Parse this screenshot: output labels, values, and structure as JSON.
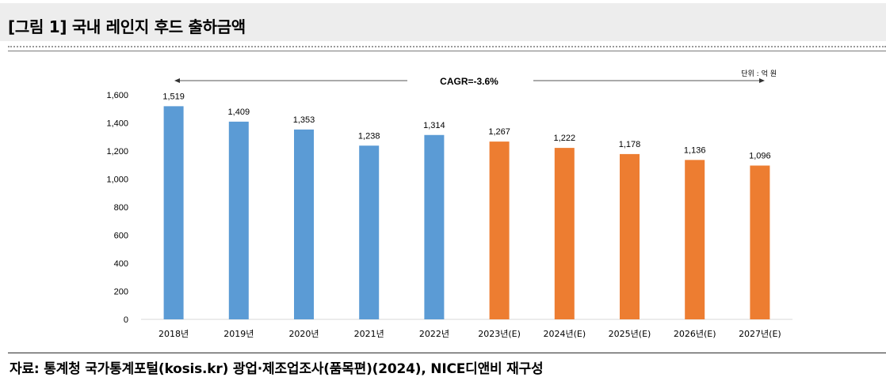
{
  "figure": {
    "title": "[그림 1] 국내 레인지 후드 출하금액",
    "source": "자료: 통계청 국가통계포털(kosis.kr) 광업·제조업조사(품목편)(2024), NICE디앤비 재구성"
  },
  "chart_data": {
    "type": "bar",
    "title": "",
    "unit_label": "단위 : 억 원",
    "annotation": "CAGR=-3.6%",
    "xlabel": "",
    "ylabel": "",
    "categories": [
      "2018년",
      "2019년",
      "2020년",
      "2021년",
      "2022년",
      "2023년(E)",
      "2024년(E)",
      "2025년(E)",
      "2026년(E)",
      "2027년(E)"
    ],
    "values": [
      1519,
      1409,
      1353,
      1238,
      1314,
      1267,
      1222,
      1178,
      1136,
      1096
    ],
    "value_labels": [
      "1,519",
      "1,409",
      "1,353",
      "1,238",
      "1,314",
      "1,267",
      "1,222",
      "1,178",
      "1,136",
      "1,096"
    ],
    "yticks": [
      "0",
      "200",
      "400",
      "600",
      "800",
      "1,000",
      "1,200",
      "1,400",
      "1,600"
    ],
    "ylim": [
      0,
      1600
    ],
    "grid": false,
    "colors": {
      "actual": "#5b9bd5",
      "estimate": "#ed7d31"
    },
    "estimate_from_index": 5
  }
}
